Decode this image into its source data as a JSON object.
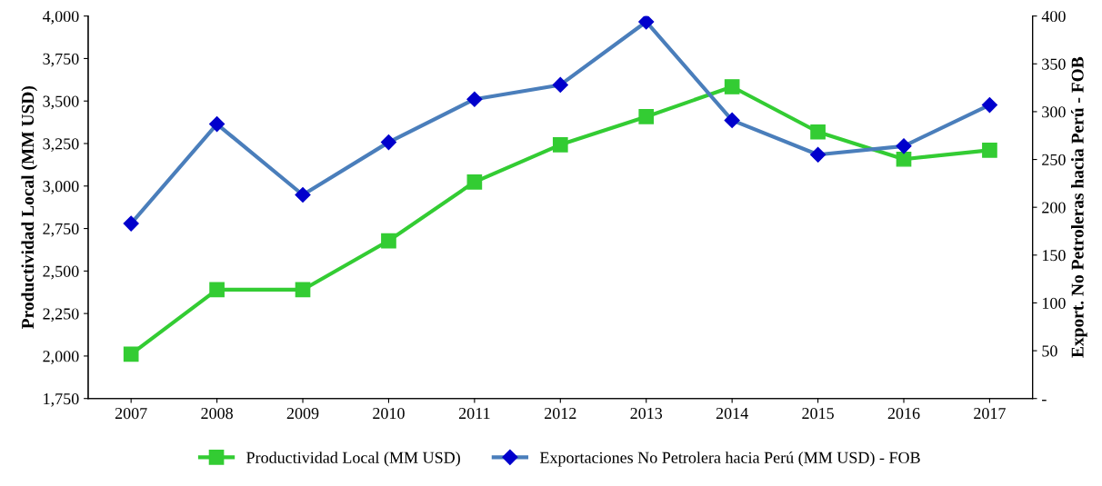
{
  "chart_data": {
    "type": "line",
    "ylabel": "Productividad Local (MM USD)",
    "y2label": "Export. No Petroleras hacia Perú - FOB",
    "categories": [
      "2007",
      "2008",
      "2009",
      "2010",
      "2011",
      "2012",
      "2013",
      "2014",
      "2015",
      "2016",
      "2017"
    ],
    "series": [
      {
        "name": "Productividad Local (MM USD)",
        "color": "#33cc33",
        "marker": "square",
        "values": [
          2011,
          2390,
          2390,
          2678,
          3024,
          3243,
          3408,
          3584,
          3318,
          3158,
          3211
        ]
      },
      {
        "name": "Exportaciones No Petrolera hacia Perú (MM USD) - FOB",
        "color": "#4a7ebb",
        "marker": "diamond",
        "axis": "y2",
        "values": [
          183,
          287,
          213,
          268,
          313,
          328,
          394,
          291,
          255,
          264,
          307
        ]
      }
    ],
    "ylim": [
      1750,
      4000
    ],
    "yticks": [
      {
        "value": 1750,
        "label": "1,750"
      },
      {
        "value": 2000,
        "label": "2,000"
      },
      {
        "value": 2250,
        "label": "2,250"
      },
      {
        "value": 2500,
        "label": "2,500"
      },
      {
        "value": 2750,
        "label": "2,750"
      },
      {
        "value": 3000,
        "label": "3,000"
      },
      {
        "value": 3250,
        "label": "3,250"
      },
      {
        "value": 3500,
        "label": "3,500"
      },
      {
        "value": 3750,
        "label": "3,750"
      },
      {
        "value": 4000,
        "label": "4,000"
      }
    ],
    "y2lim": [
      0,
      400
    ],
    "y2ticks": [
      {
        "value": 0,
        "label": "-"
      },
      50,
      100,
      150,
      200,
      250,
      300,
      350,
      400
    ],
    "grid": false,
    "legend": "bottom",
    "line_style": "solid"
  }
}
